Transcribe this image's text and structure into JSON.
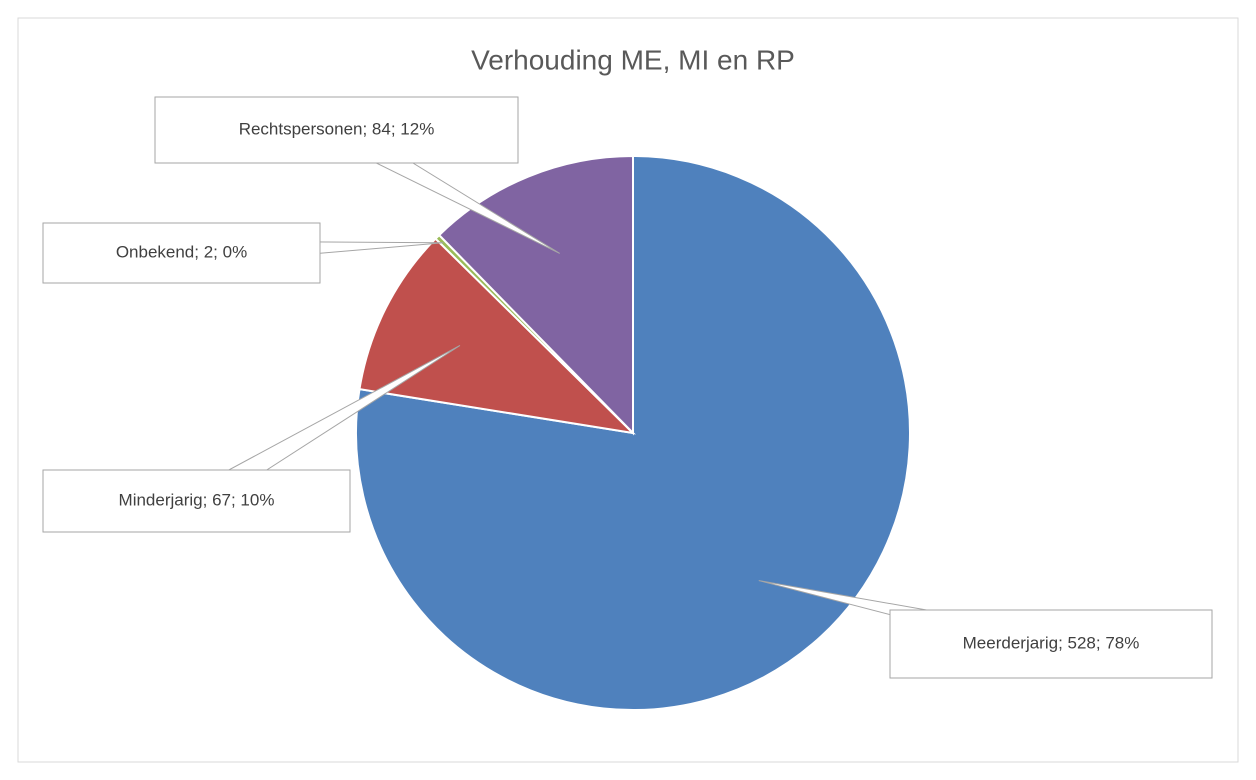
{
  "chart_data": {
    "type": "pie",
    "title": "Verhouding ME, MI en RP",
    "categories": [
      "Meerderjarig",
      "Minderjarig",
      "Onbekend",
      "Rechtspersonen"
    ],
    "values": [
      528,
      67,
      2,
      84
    ],
    "value_labels": [
      "Meerderjarig; 528; 78%",
      "Minderjarig; 67; 10%",
      "Onbekend; 2; 0%",
      "Rechtspersonen; 84; 12%"
    ],
    "colors": [
      "#4f81bd",
      "#c0504d",
      "#9bbb59",
      "#8064a2"
    ]
  }
}
